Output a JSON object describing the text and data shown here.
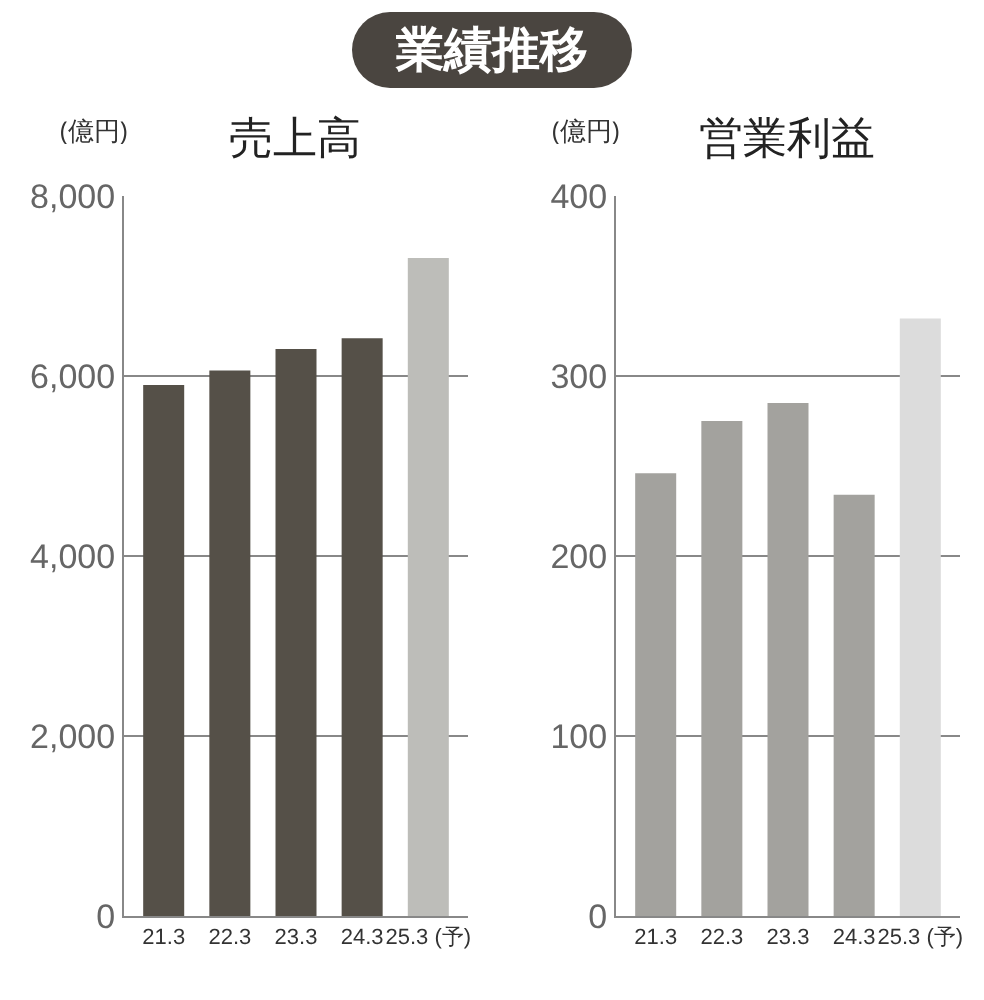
{
  "chart_data": [
    {
      "type": "other",
      "title": "業績推移"
    },
    {
      "type": "bar",
      "title": "売上高",
      "ylabel": "(億円)",
      "categories": [
        "21.3",
        "22.3",
        "23.3",
        "24.3",
        "25.3 (予)"
      ],
      "values": [
        5900,
        6060,
        6300,
        6420,
        7310
      ],
      "colors": [
        "#555048",
        "#555048",
        "#555048",
        "#555048",
        "#bdbdb9"
      ],
      "ylim": [
        0,
        8000
      ],
      "yticks": [
        0,
        {
          "value": 2000,
          "label": "2,000"
        },
        {
          "value": 4000,
          "label": "4,000"
        },
        {
          "value": 6000,
          "label": "6,000"
        },
        {
          "value": 8000,
          "label": "8,000"
        }
      ],
      "grid": "y"
    },
    {
      "type": "bar",
      "title": "営業利益",
      "ylabel": "(億円)",
      "categories": [
        "21.3",
        "22.3",
        "23.3",
        "24.3",
        "25.3 (予)"
      ],
      "values": [
        246,
        275,
        285,
        234,
        332
      ],
      "colors": [
        "#a3a29e",
        "#a3a29e",
        "#a3a29e",
        "#a3a29e",
        "#dcdcdc"
      ],
      "ylim": [
        0,
        400
      ],
      "yticks": [
        0,
        100,
        200,
        300,
        400
      ],
      "grid": "y"
    }
  ]
}
